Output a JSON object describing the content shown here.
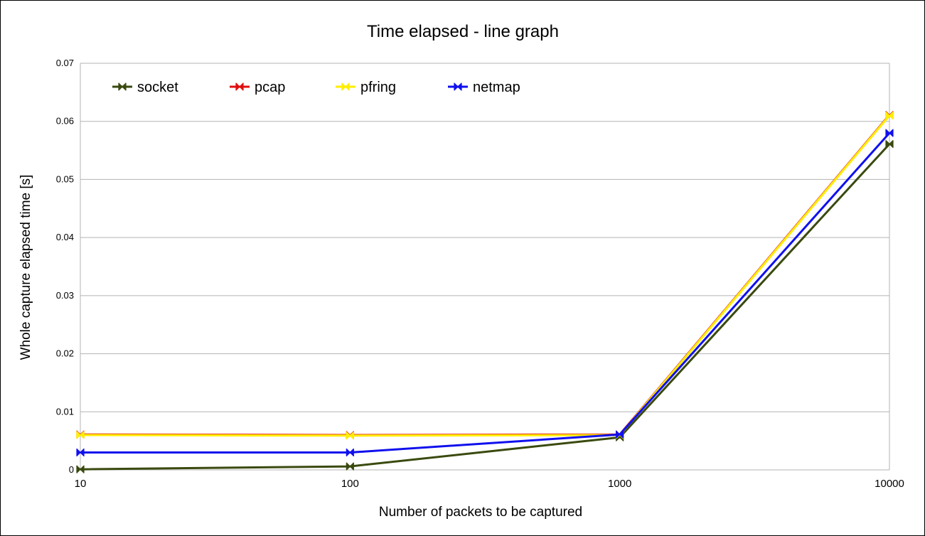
{
  "chart_data": {
    "type": "line",
    "title": "Time elapsed - line graph",
    "xlabel": "Number of packets to be captured",
    "ylabel": "Whole capture elapsed time [s]",
    "x": [
      10,
      100,
      1000,
      10000
    ],
    "x_tick_labels": [
      "10",
      "100",
      "1000",
      "10000"
    ],
    "x_scale": "log",
    "ylim": [
      0,
      0.07
    ],
    "y_ticks": [
      0,
      0.01,
      0.02,
      0.03,
      0.04,
      0.05,
      0.06,
      0.07
    ],
    "y_tick_labels": [
      "0",
      "0.01",
      "0.02",
      "0.03",
      "0.04",
      "0.05",
      "0.06",
      "0.07"
    ],
    "grid": "horizontal",
    "legend_position": "top-left",
    "series": [
      {
        "name": "socket",
        "color": "#3a4a0f",
        "values": [
          0.0001,
          0.0006,
          0.0056,
          0.0561
        ]
      },
      {
        "name": "pcap",
        "color": "#e01010",
        "values": [
          0.0061,
          0.006,
          0.0061,
          0.0611
        ]
      },
      {
        "name": "pfring",
        "color": "#ffee00",
        "values": [
          0.006,
          0.0059,
          0.006,
          0.061
        ]
      },
      {
        "name": "netmap",
        "color": "#1010ee",
        "values": [
          0.003,
          0.003,
          0.0061,
          0.058
        ]
      }
    ]
  }
}
